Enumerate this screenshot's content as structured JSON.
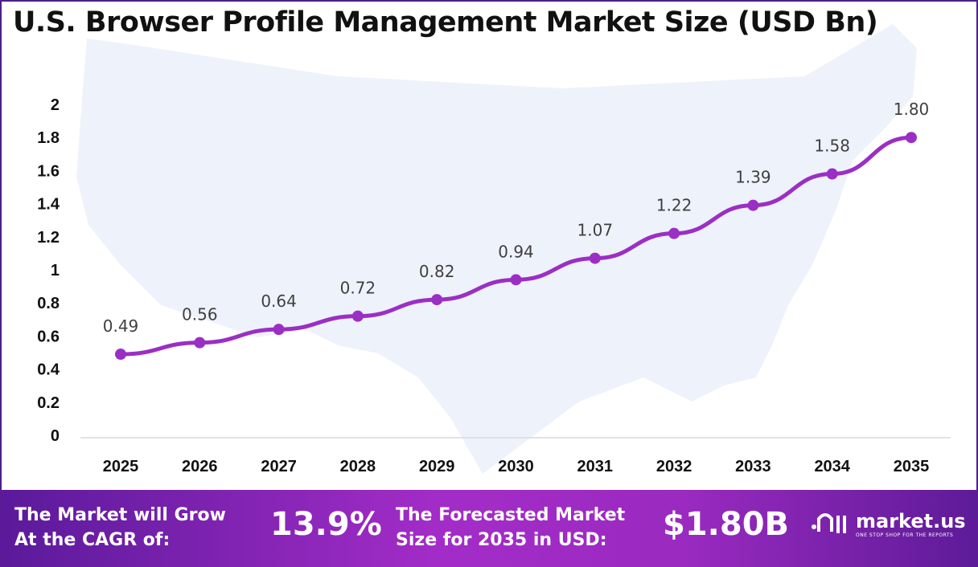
{
  "chart_data": {
    "type": "line",
    "title": "U.S. Browser Profile Management Market Size (USD Bn)",
    "categories": [
      "2025",
      "2026",
      "2027",
      "2028",
      "2029",
      "2030",
      "2031",
      "2032",
      "2033",
      "2034",
      "2035"
    ],
    "values": [
      0.49,
      0.56,
      0.64,
      0.72,
      0.82,
      0.94,
      1.07,
      1.22,
      1.39,
      1.58,
      1.8
    ],
    "data_labels": [
      "0.49",
      "0.56",
      "0.64",
      "0.72",
      "0.82",
      "0.94",
      "1.07",
      "1.22",
      "1.39",
      "1.58",
      "1.80"
    ],
    "ylim": [
      0,
      2
    ],
    "yticks": [
      "0",
      "0.2",
      "0.4",
      "0.6",
      "0.8",
      "1",
      "1.2",
      "1.4",
      "1.6",
      "1.8",
      "2"
    ],
    "grid": false,
    "legend": "none",
    "line_color": "#9b2fc4",
    "background": "US map silhouette"
  },
  "footer": {
    "cagr_label": [
      "The Market will Grow",
      "At the CAGR of:"
    ],
    "cagr_value": "13.9%",
    "forecast_label": [
      "The Forecasted Market",
      "Size for 2035 in USD:"
    ],
    "forecast_value": "$1.80B",
    "logo_name": "market.us",
    "logo_tagline": "ONE STOP SHOP FOR THE REPORTS"
  }
}
